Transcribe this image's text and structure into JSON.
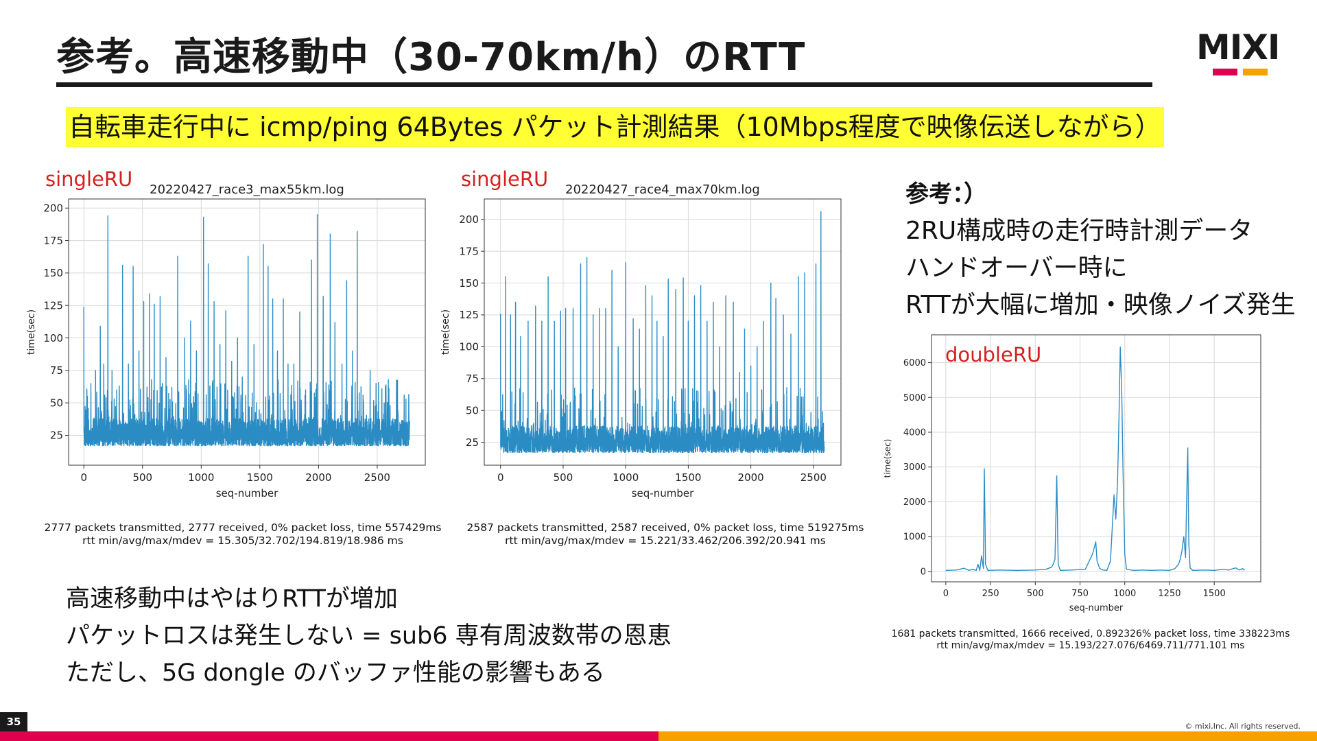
{
  "slide": {
    "title": "参考。高速移動中（30-70km/h）のRTT",
    "subtitle": "自転車走行中に icmp/ping 64Bytes パケット計測結果（10Mbps程度で映像伝送しながら）",
    "logo": "MIXI",
    "page_number": "35",
    "copyright": "© mixi,Inc. All rights reserved.",
    "colors": {
      "accent_pink": "#e0004e",
      "accent_orange": "#f5a200",
      "highlight": "#ffff33",
      "line": "#2b8cc4",
      "label_red": "#d42020"
    }
  },
  "charts": [
    {
      "label": "singleRU",
      "stats_line1": "2777 packets transmitted, 2777 received, 0% packet loss, time 557429ms",
      "stats_line2": "rtt min/avg/max/mdev = 15.305/32.702/194.819/18.986 ms"
    },
    {
      "label": "singleRU",
      "stats_line1": "2587 packets transmitted, 2587 received, 0% packet loss, time 519275ms",
      "stats_line2": "rtt min/avg/max/mdev = 15.221/33.462/206.392/20.941 ms"
    },
    {
      "label": "doubleRU",
      "stats_line1": "1681 packets transmitted, 1666 received, 0.892326% packet loss, time 338223ms",
      "stats_line2": "rtt min/avg/max/mdev = 15.193/227.076/6469.711/771.101 ms"
    }
  ],
  "reference": {
    "heading": "参考：）",
    "lines": [
      "2RU構成時の走行時計測データ",
      "ハンドオーバー時に",
      "RTTが大幅に増加・映像ノイズ発生"
    ]
  },
  "bottom_text": [
    "高速移動中はやはりRTTが増加",
    "パケットロスは発生しない = sub6 専有周波数帯の恩恵",
    "ただし、5G dongle のバッファ性能の影響もある"
  ],
  "chart_data": [
    {
      "type": "line",
      "title": "20220427_race3_max55km.log",
      "xlabel": "seq-number",
      "ylabel": "time(sec)",
      "xlim": [
        -130,
        2910
      ],
      "ylim": [
        2,
        207
      ],
      "xticks": [
        0,
        500,
        1000,
        1500,
        2000,
        2500
      ],
      "yticks": [
        25,
        50,
        75,
        100,
        125,
        150,
        175,
        200
      ],
      "grid": true,
      "n_points": 2777,
      "baseline": {
        "low": 17,
        "high": 38
      },
      "spikes": [
        [
          0,
          124
        ],
        [
          30,
          55
        ],
        [
          60,
          65
        ],
        [
          100,
          75
        ],
        [
          140,
          109
        ],
        [
          170,
          80
        ],
        [
          205,
          194
        ],
        [
          240,
          75
        ],
        [
          280,
          60
        ],
        [
          330,
          156
        ],
        [
          380,
          80
        ],
        [
          420,
          155
        ],
        [
          470,
          90
        ],
        [
          510,
          128
        ],
        [
          560,
          134
        ],
        [
          600,
          126
        ],
        [
          650,
          132
        ],
        [
          700,
          85
        ],
        [
          750,
          62
        ],
        [
          800,
          163
        ],
        [
          860,
          100
        ],
        [
          910,
          113
        ],
        [
          960,
          90
        ],
        [
          1020,
          193
        ],
        [
          1060,
          157
        ],
        [
          1110,
          128
        ],
        [
          1160,
          95
        ],
        [
          1210,
          121
        ],
        [
          1260,
          82
        ],
        [
          1310,
          100
        ],
        [
          1350,
          70
        ],
        [
          1400,
          163
        ],
        [
          1450,
          95
        ],
        [
          1530,
          172
        ],
        [
          1570,
          155
        ],
        [
          1610,
          130
        ],
        [
          1650,
          90
        ],
        [
          1700,
          130
        ],
        [
          1740,
          80
        ],
        [
          1790,
          80
        ],
        [
          1840,
          120
        ],
        [
          1890,
          60
        ],
        [
          1940,
          160
        ],
        [
          1990,
          195
        ],
        [
          2040,
          132
        ],
        [
          2100,
          180
        ],
        [
          2140,
          112
        ],
        [
          2200,
          80
        ],
        [
          2240,
          144
        ],
        [
          2290,
          90
        ],
        [
          2330,
          182
        ],
        [
          2380,
          56
        ],
        [
          2440,
          75
        ],
        [
          2490,
          65
        ],
        [
          2560,
          50
        ],
        [
          2610,
          48
        ],
        [
          2670,
          50
        ],
        [
          2730,
          56
        ],
        [
          2770,
          45
        ]
      ]
    },
    {
      "type": "line",
      "title": "20220427_race4_max70km.log",
      "xlabel": "seq-number",
      "ylabel": "time(sec)",
      "xlim": [
        -130,
        2720
      ],
      "ylim": [
        7,
        216
      ],
      "xticks": [
        0,
        500,
        1000,
        1500,
        2000,
        2500
      ],
      "yticks": [
        25,
        50,
        75,
        100,
        125,
        150,
        175,
        200
      ],
      "grid": true,
      "n_points": 2587,
      "baseline": {
        "low": 17,
        "high": 38
      },
      "spikes": [
        [
          0,
          126
        ],
        [
          40,
          155
        ],
        [
          80,
          125
        ],
        [
          120,
          135
        ],
        [
          160,
          108
        ],
        [
          220,
          120
        ],
        [
          280,
          132
        ],
        [
          330,
          120
        ],
        [
          380,
          155
        ],
        [
          430,
          120
        ],
        [
          480,
          128
        ],
        [
          520,
          130
        ],
        [
          580,
          130
        ],
        [
          640,
          165
        ],
        [
          690,
          170
        ],
        [
          740,
          125
        ],
        [
          790,
          130
        ],
        [
          840,
          130
        ],
        [
          890,
          160
        ],
        [
          940,
          100
        ],
        [
          1000,
          166
        ],
        [
          1060,
          122
        ],
        [
          1110,
          114
        ],
        [
          1160,
          148
        ],
        [
          1210,
          140
        ],
        [
          1250,
          120
        ],
        [
          1300,
          108
        ],
        [
          1340,
          153
        ],
        [
          1400,
          145
        ],
        [
          1460,
          154
        ],
        [
          1500,
          120
        ],
        [
          1550,
          140
        ],
        [
          1600,
          148
        ],
        [
          1650,
          120
        ],
        [
          1700,
          135
        ],
        [
          1750,
          100
        ],
        [
          1800,
          140
        ],
        [
          1860,
          135
        ],
        [
          1910,
          80
        ],
        [
          1950,
          114
        ],
        [
          2000,
          85
        ],
        [
          2050,
          100
        ],
        [
          2100,
          120
        ],
        [
          2160,
          150
        ],
        [
          2200,
          138
        ],
        [
          2260,
          125
        ],
        [
          2320,
          110
        ],
        [
          2380,
          155
        ],
        [
          2430,
          158
        ],
        [
          2520,
          165
        ],
        [
          2560,
          206
        ],
        [
          2580,
          40
        ]
      ]
    },
    {
      "type": "line",
      "xlabel": "seq-number",
      "ylabel": "time(sec)",
      "xlim": [
        -80,
        1760
      ],
      "ylim": [
        -300,
        6800
      ],
      "xticks": [
        0,
        250,
        500,
        750,
        1000,
        1250,
        1500
      ],
      "yticks": [
        0,
        1000,
        2000,
        3000,
        4000,
        5000,
        6000
      ],
      "grid": true,
      "n_points": 1681,
      "series": [
        {
          "values_xy": [
            [
              0,
              30
            ],
            [
              60,
              40
            ],
            [
              100,
              90
            ],
            [
              130,
              30
            ],
            [
              150,
              60
            ],
            [
              170,
              30
            ],
            [
              180,
              200
            ],
            [
              190,
              30
            ],
            [
              200,
              450
            ],
            [
              210,
              80
            ],
            [
              215,
              2950
            ],
            [
              222,
              200
            ],
            [
              235,
              30
            ],
            [
              300,
              40
            ],
            [
              400,
              30
            ],
            [
              500,
              40
            ],
            [
              560,
              60
            ],
            [
              590,
              120
            ],
            [
              600,
              200
            ],
            [
              610,
              350
            ],
            [
              620,
              2750
            ],
            [
              628,
              200
            ],
            [
              640,
              30
            ],
            [
              700,
              40
            ],
            [
              780,
              60
            ],
            [
              820,
              500
            ],
            [
              838,
              850
            ],
            [
              845,
              300
            ],
            [
              860,
              80
            ],
            [
              880,
              40
            ],
            [
              900,
              30
            ],
            [
              920,
              300
            ],
            [
              940,
              2200
            ],
            [
              950,
              1500
            ],
            [
              960,
              2600
            ],
            [
              968,
              4500
            ],
            [
              975,
              6450
            ],
            [
              983,
              5200
            ],
            [
              990,
              3000
            ],
            [
              1000,
              500
            ],
            [
              1010,
              60
            ],
            [
              1050,
              30
            ],
            [
              1100,
              40
            ],
            [
              1150,
              30
            ],
            [
              1200,
              40
            ],
            [
              1250,
              30
            ],
            [
              1280,
              80
            ],
            [
              1300,
              200
            ],
            [
              1310,
              350
            ],
            [
              1320,
              600
            ],
            [
              1330,
              1000
            ],
            [
              1340,
              400
            ],
            [
              1345,
              1800
            ],
            [
              1352,
              3550
            ],
            [
              1358,
              800
            ],
            [
              1365,
              100
            ],
            [
              1380,
              30
            ],
            [
              1450,
              40
            ],
            [
              1500,
              30
            ],
            [
              1550,
              60
            ],
            [
              1580,
              40
            ],
            [
              1620,
              100
            ],
            [
              1640,
              40
            ],
            [
              1660,
              80
            ],
            [
              1670,
              30
            ]
          ]
        }
      ]
    }
  ]
}
